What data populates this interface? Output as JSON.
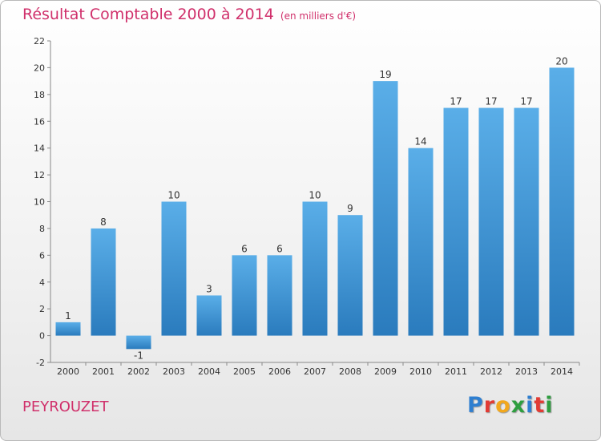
{
  "header": {
    "title": "Résultat Comptable 2000 à 2014",
    "unit_note": "(en milliers d'€)"
  },
  "footer": {
    "commune": "PEYROUZET",
    "logo_letters": [
      "P",
      "r",
      "o",
      "x",
      "i",
      "t",
      "i"
    ],
    "logo_colors": [
      "#2f7fd0",
      "#e23b34",
      "#f2a81d",
      "#2e9e3f",
      "#2f7fd0",
      "#e23b34",
      "#2e9e3f"
    ]
  },
  "chart_data": {
    "type": "bar",
    "title": "Résultat Comptable 2000 à 2014",
    "subtitle": "(en milliers d'€)",
    "categories": [
      "2000",
      "2001",
      "2002",
      "2003",
      "2004",
      "2005",
      "2006",
      "2007",
      "2008",
      "2009",
      "2010",
      "2011",
      "2012",
      "2013",
      "2014"
    ],
    "values": [
      1,
      8,
      -1,
      10,
      3,
      6,
      6,
      10,
      9,
      19,
      14,
      17,
      17,
      17,
      20
    ],
    "data_labels": [
      "1",
      "8",
      "-1",
      "10",
      "3",
      "6",
      "6",
      "10",
      "9",
      "19",
      "14",
      "17",
      "17",
      "17",
      "20"
    ],
    "ylim": [
      -2,
      22
    ],
    "yticks": [
      -2,
      0,
      2,
      4,
      6,
      8,
      10,
      12,
      14,
      16,
      18,
      20,
      22
    ],
    "grid": false,
    "bar_color_top": "#5aaee8",
    "bar_color_bottom": "#2a7bbd",
    "xlabel": "",
    "ylabel": ""
  }
}
